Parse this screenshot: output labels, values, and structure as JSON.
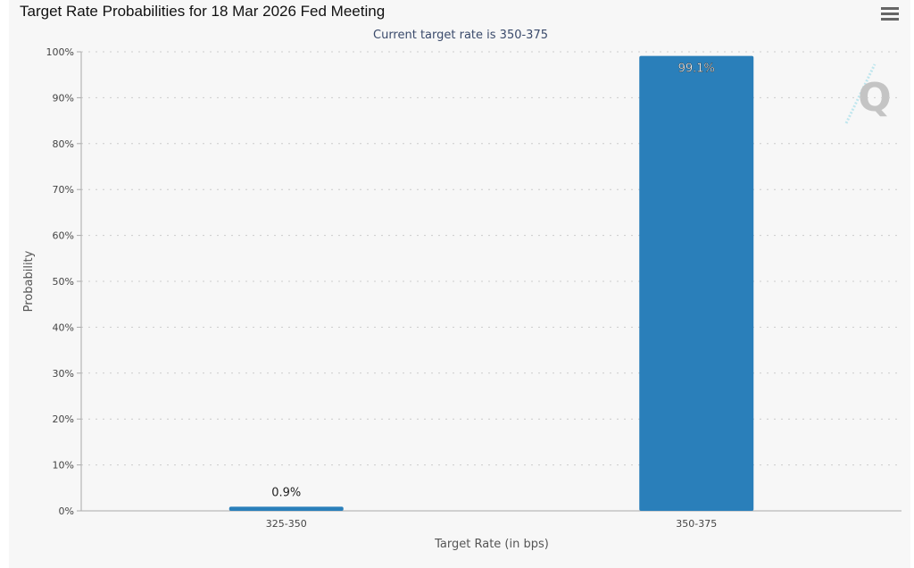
{
  "chart_data": {
    "type": "bar",
    "title": "Target Rate Probabilities for 18 Mar 2026 Fed Meeting",
    "subtitle": "Current target rate is 350-375",
    "categories": [
      "325-350",
      "350-375"
    ],
    "values": [
      0.9,
      99.1
    ],
    "data_labels": [
      "0.9%",
      "99.1%"
    ],
    "xlabel": "Target Rate (in bps)",
    "ylabel": "Probability",
    "ylim": [
      0,
      100
    ],
    "yticks": [
      "0%",
      "10%",
      "20%",
      "30%",
      "40%",
      "50%",
      "60%",
      "70%",
      "80%",
      "90%",
      "100%"
    ],
    "grid": true,
    "bar_color": "#2a7fba"
  },
  "menu_icon": "hamburger-menu-icon",
  "watermark": "Q"
}
